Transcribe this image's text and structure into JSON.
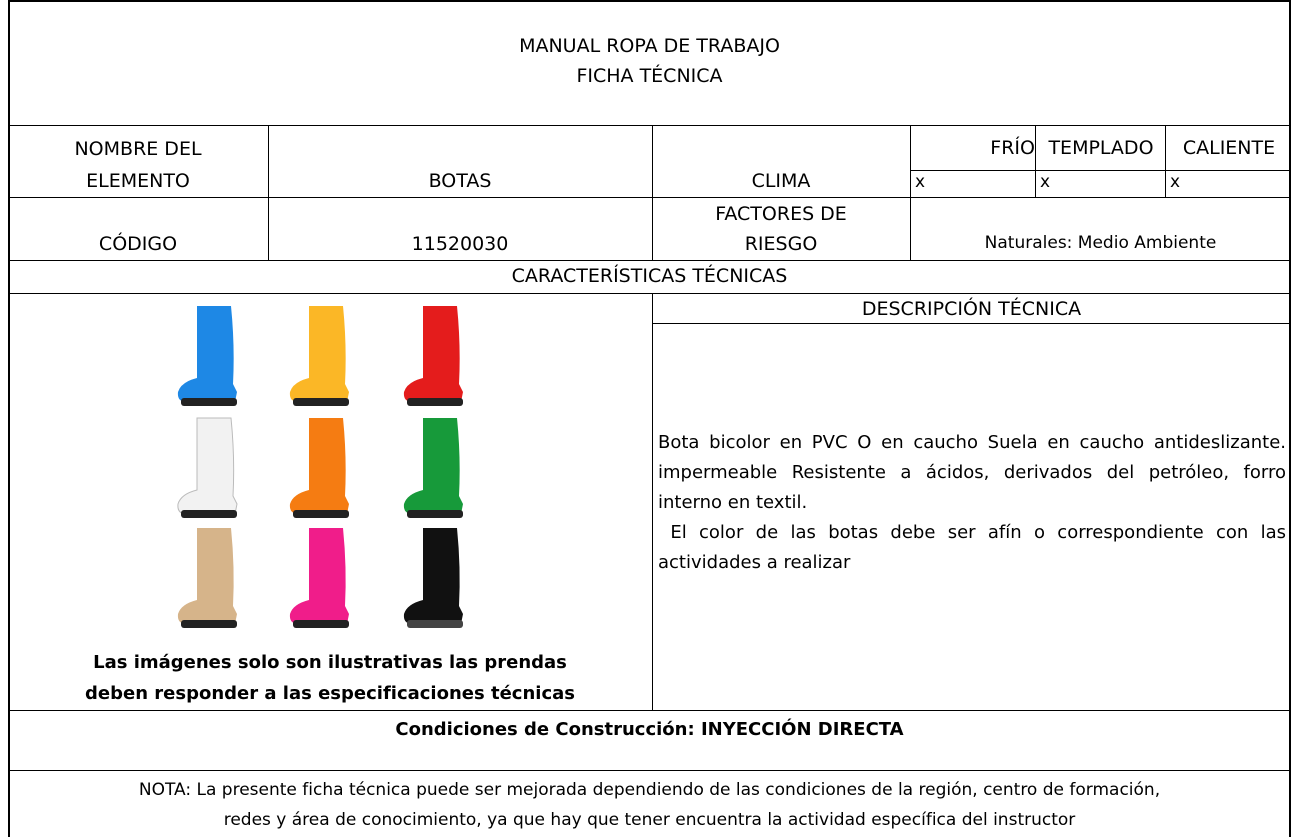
{
  "header": {
    "title": "MANUAL ROPA DE TRABAJO",
    "subtitle": "FICHA TÉCNICA"
  },
  "element": {
    "label": [
      "NOMBRE DEL",
      "ELEMENTO"
    ],
    "value": "BOTAS"
  },
  "climate": {
    "label": "CLIMA",
    "options": [
      {
        "name": "FRÍO",
        "mark": "x"
      },
      {
        "name": "TEMPLADO",
        "mark": "x"
      },
      {
        "name": "CALIENTE",
        "mark": "x"
      }
    ]
  },
  "code": {
    "label": "CÓDIGO",
    "value": "11520030"
  },
  "risk": {
    "label": [
      "FACTORES DE",
      "RIESGO"
    ],
    "value": "Naturales: Medio Ambiente"
  },
  "section_title": "CARACTERÍSTICAS TÉCNICAS",
  "image_caption": [
    "Las imágenes solo son ilustrativas las prendas",
    "deben responder a las especificaciones técnicas"
  ],
  "description": {
    "title": "DESCRIPCIÓN TÉCNICA",
    "paragraphs": [
      "Bota bicolor en PVC O en caucho  Suela en caucho antideslizante. impermeable Resistente a ácidos,  derivados del petróleo,  forro interno en textil.",
      " El color de las botas debe ser afín o correspondiente con las actividades a realizar"
    ]
  },
  "construction": "Condiciones de Construcción: INYECCIÓN DIRECTA",
  "note": [
    "NOTA: La presente ficha técnica puede ser mejorada dependiendo de las condiciones de la región, centro de formación,",
    "redes y área de conocimiento, ya que hay que tener encuentra la actividad específica del instructor"
  ]
}
